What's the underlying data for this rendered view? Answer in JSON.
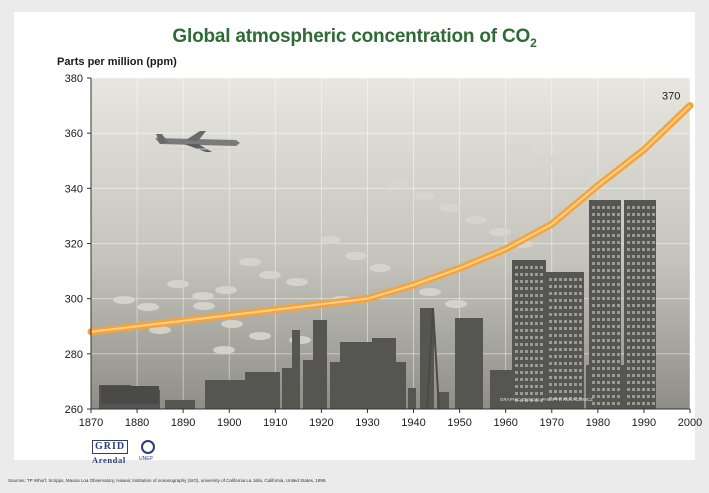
{
  "title": "Global atmospheric concentration of CO",
  "title_subscript": "2",
  "colors": {
    "title": "#2f6b34",
    "line": "#f5a93a",
    "sky_top": "#e6e5df",
    "sky_bottom": "#8d8d84",
    "buildings": "#555552",
    "clouds": "#d4d3cc"
  },
  "chart_data": {
    "type": "line",
    "title": "Global atmospheric concentration of CO2",
    "ylabel": "Parts per million (ppm)",
    "xlabel": "",
    "xlim": [
      1870,
      2000
    ],
    "ylim": [
      260,
      380
    ],
    "x_ticks": [
      1870,
      1880,
      1890,
      1900,
      1910,
      1920,
      1930,
      1940,
      1950,
      1960,
      1970,
      1980,
      1990,
      2000
    ],
    "y_ticks": [
      260,
      280,
      300,
      320,
      340,
      360,
      380
    ],
    "grid": true,
    "series": [
      {
        "x": [
          1870,
          1880,
          1890,
          1900,
          1910,
          1920,
          1930,
          1940,
          1950,
          1960,
          1970,
          1980,
          1990,
          2000
        ],
        "values": [
          288,
          290,
          292,
          294,
          296,
          298,
          300,
          305,
          311,
          318,
          327,
          341,
          354,
          370
        ]
      }
    ],
    "annotations": [
      {
        "text": "370",
        "x": 2000,
        "y": 370
      }
    ]
  },
  "credit": "GRAPHIC DESIGN: PHILIPPE REKACEWICZ",
  "logo": {
    "grid": "GRID",
    "arendal": "Arendal",
    "unep": "UNEP"
  },
  "source": "Sources: TP Whorf, Scripps, Mauna Loa Observatory, Hawaii; Institution of oceanography (SIO), university of California La Jolla, California, United States, 1999."
}
